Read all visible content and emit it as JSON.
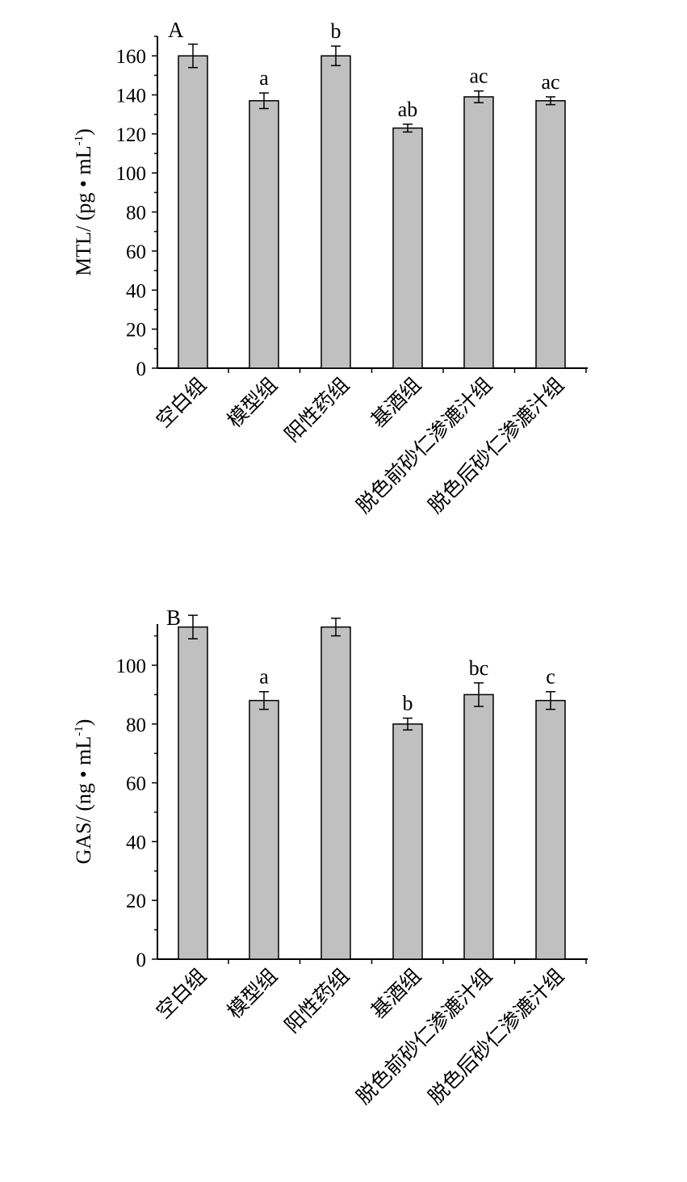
{
  "chart_data": [
    {
      "type": "bar",
      "panel_label": "A",
      "ylabel": {
        "main": "MTL/ (pg • mL",
        "sup": "-1",
        "close": ")"
      },
      "ylim": [
        0,
        170
      ],
      "yticks": [
        0,
        20,
        40,
        60,
        80,
        100,
        120,
        140,
        160
      ],
      "ytick_labels": [
        "0",
        "20",
        "40",
        "60",
        "80",
        "100",
        "120",
        "140",
        "160"
      ],
      "categories": [
        "空白组",
        "模型组",
        "阳性药组",
        "基酒组",
        "脱色前砂仁渗漉汁组",
        "脱色后砂仁渗漉汁组"
      ],
      "values": [
        160,
        137,
        160,
        123,
        139,
        137
      ],
      "errors": [
        6,
        4,
        5,
        2,
        3,
        2
      ],
      "significance": [
        "",
        "a",
        "b",
        "ab",
        "ac",
        "ac"
      ],
      "bar_color": "#c0c0c0"
    },
    {
      "type": "bar",
      "panel_label": "B",
      "ylabel": {
        "main": "GAS/ (ng • mL",
        "sup": "-1",
        "close": ")"
      },
      "ylim": [
        0,
        114
      ],
      "yticks": [
        0,
        20,
        40,
        60,
        80,
        100
      ],
      "ytick_labels": [
        "0",
        "20",
        "40",
        "60",
        "80",
        "100"
      ],
      "categories": [
        "空白组",
        "模型组",
        "阳性药组",
        "基酒组",
        "脱色前砂仁渗漉汁组",
        "脱色后砂仁渗漉汁组"
      ],
      "values": [
        113,
        88,
        113,
        80,
        90,
        88
      ],
      "errors": [
        4,
        3,
        3,
        2,
        4,
        3
      ],
      "significance": [
        "",
        "a",
        "",
        "b",
        "bc",
        "c"
      ],
      "bar_color": "#c0c0c0"
    }
  ]
}
